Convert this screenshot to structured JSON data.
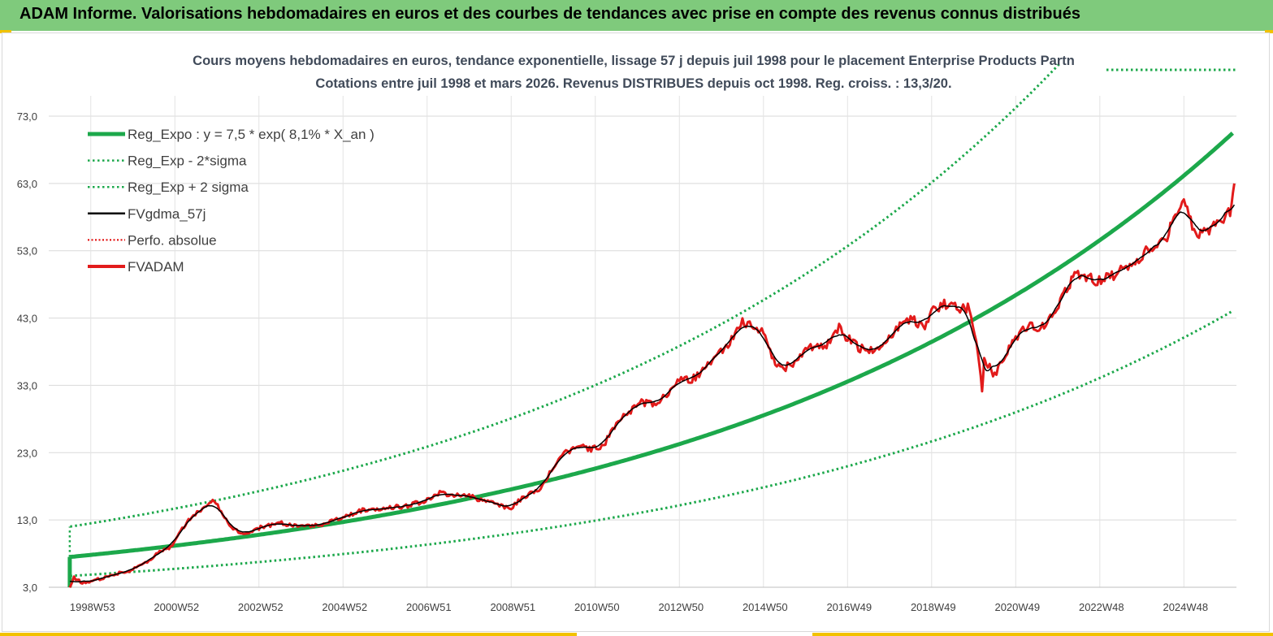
{
  "header": {
    "title": "ADAM Informe. Valorisations hebdomadaires en euros et des courbes de tendances avec prise en compte des revenus connus distribués"
  },
  "chart_data": {
    "type": "line",
    "title_line1": "Cours moyens hebdomadaires en euros, tendance exponentielle, lissage 57 j depuis juil 1998 pour le placement Enterprise Products Partn",
    "title_line2": "Cotations entre juil 1998 et mars 2026. Revenus DISTRIBUES depuis oct 1998. Reg. croiss. : 13,3/20.",
    "ylim": [
      3,
      73
    ],
    "yticks": [
      "73,0",
      "63,0",
      "53,0",
      "43,0",
      "33,0",
      "23,0",
      "13,0",
      "3,0"
    ],
    "yticks_values": [
      73,
      63,
      53,
      43,
      33,
      23,
      13,
      3
    ],
    "x_range": [
      1998.0,
      2026.25
    ],
    "xticks": [
      "1998W53",
      "2000W52",
      "2002W52",
      "2004W52",
      "2006W51",
      "2008W51",
      "2010W50",
      "2012W50",
      "2014W50",
      "2016W49",
      "2018W49",
      "2020W49",
      "2022W48",
      "2024W48"
    ],
    "xticks_values": [
      1999.0,
      2001.0,
      2003.0,
      2005.0,
      2007.0,
      2009.0,
      2011.0,
      2013.0,
      2015.0,
      2017.0,
      2019.0,
      2021.0,
      2023.0,
      2025.0
    ],
    "grid": true,
    "legend_position": "top-left",
    "regression": {
      "a": 7.5,
      "rate": 0.081,
      "start": 1998.5,
      "sigma_factor": 1.6
    },
    "series": [
      {
        "name": "Reg_Expo : y = 7,5 * exp( 8,1% *  X_an )",
        "color": "#1ca84b",
        "style": "solid-thick"
      },
      {
        "name": "Reg_Exp - 2*sigma",
        "color": "#1ca84b",
        "style": "dotted"
      },
      {
        "name": "Reg_Exp + 2 sigma",
        "color": "#1ca84b",
        "style": "dotted"
      },
      {
        "name": "FVgdma_57j",
        "color": "#000000",
        "style": "solid-thin"
      },
      {
        "name": "Perfo. absolue",
        "color": "#e00000",
        "style": "dotted"
      },
      {
        "name": "FVADAM",
        "color": "#e21b1b",
        "style": "solid",
        "x": [
          1998.5,
          1998.6,
          1998.8,
          1999.0,
          1999.3,
          1999.6,
          2000.0,
          2000.3,
          2000.6,
          2000.9,
          2001.1,
          2001.4,
          2001.7,
          2001.9,
          2002.1,
          2002.3,
          2002.6,
          2003.0,
          2003.5,
          2004.0,
          2004.5,
          2005.0,
          2005.5,
          2006.0,
          2006.5,
          2007.0,
          2007.3,
          2007.6,
          2008.0,
          2008.4,
          2008.8,
          2009.0,
          2009.3,
          2009.7,
          2010.0,
          2010.3,
          2010.6,
          2010.9,
          2011.2,
          2011.5,
          2011.8,
          2012.1,
          2012.4,
          2012.7,
          2013.0,
          2013.3,
          2013.6,
          2013.9,
          2014.2,
          2014.5,
          2014.8,
          2015.0,
          2015.2,
          2015.4,
          2015.7,
          2016.0,
          2016.2,
          2016.5,
          2016.8,
          2017.0,
          2017.3,
          2017.6,
          2017.9,
          2018.2,
          2018.5,
          2018.8,
          2019.0,
          2019.3,
          2019.6,
          2019.9,
          2020.1,
          2020.2,
          2020.25,
          2020.3,
          2020.5,
          2020.8,
          2021.0,
          2021.3,
          2021.6,
          2021.9,
          2022.1,
          2022.4,
          2022.6,
          2022.9,
          2023.2,
          2023.5,
          2023.8,
          2024.1,
          2024.4,
          2024.6,
          2024.8,
          2025.0,
          2025.2,
          2025.4,
          2025.6,
          2025.9,
          2026.1,
          2026.2
        ],
        "values": [
          3.0,
          4.5,
          3.6,
          3.9,
          4.4,
          5.0,
          5.6,
          6.6,
          8.1,
          9.0,
          11.0,
          13.5,
          15.0,
          15.8,
          14.5,
          12.0,
          10.8,
          11.8,
          12.5,
          12.2,
          12.3,
          13.5,
          14.5,
          14.8,
          15.0,
          16.0,
          17.0,
          16.8,
          16.5,
          15.8,
          15.0,
          14.8,
          16.5,
          17.5,
          21.0,
          23.0,
          24.0,
          23.5,
          24.0,
          27.5,
          29.0,
          30.5,
          30.2,
          31.5,
          34.0,
          33.8,
          35.5,
          37.5,
          39.5,
          42.5,
          41.5,
          41.0,
          37.0,
          35.5,
          36.0,
          38.0,
          39.0,
          39.0,
          41.5,
          40.0,
          38.5,
          38.0,
          39.5,
          41.5,
          43.0,
          41.5,
          44.0,
          45.0,
          44.5,
          44.5,
          38.0,
          32.0,
          37.0,
          36.5,
          34.5,
          38.0,
          40.0,
          42.0,
          41.5,
          44.0,
          46.0,
          49.5,
          49.5,
          48.5,
          49.0,
          50.0,
          51.0,
          53.0,
          53.5,
          55.0,
          58.5,
          60.5,
          56.5,
          55.5,
          56.0,
          57.5,
          59.0,
          63.0
        ]
      }
    ]
  }
}
